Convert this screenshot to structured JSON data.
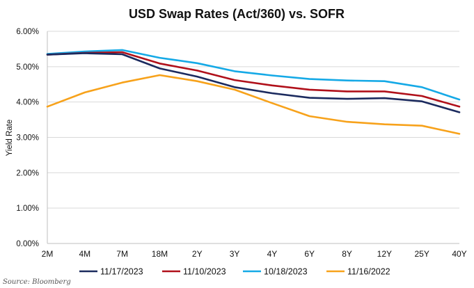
{
  "chart_data": {
    "type": "line",
    "title": "USD Swap Rates (Act/360) vs. SOFR",
    "ylabel": "Yield Rate",
    "xlabel": "",
    "ylim": [
      0,
      6
    ],
    "yticks": [
      "0.00%",
      "1.00%",
      "2.00%",
      "3.00%",
      "4.00%",
      "5.00%",
      "6.00%"
    ],
    "categories": [
      "2M",
      "4M",
      "7M",
      "18M",
      "2Y",
      "3Y",
      "4Y",
      "6Y",
      "8Y",
      "12Y",
      "25Y",
      "40Y"
    ],
    "grid": "horizontal",
    "legend_position": "bottom",
    "series": [
      {
        "name": "11/17/2023",
        "color": "#1b2a5e",
        "values": [
          5.34,
          5.38,
          5.35,
          4.95,
          4.72,
          4.42,
          4.25,
          4.12,
          4.09,
          4.11,
          4.02,
          3.71
        ]
      },
      {
        "name": "11/10/2023",
        "color": "#b0101a",
        "values": [
          5.34,
          5.39,
          5.41,
          5.09,
          4.89,
          4.62,
          4.47,
          4.35,
          4.3,
          4.3,
          4.17,
          3.87
        ]
      },
      {
        "name": "10/18/2023",
        "color": "#15a9e6",
        "values": [
          5.36,
          5.43,
          5.47,
          5.25,
          5.1,
          4.87,
          4.75,
          4.65,
          4.61,
          4.59,
          4.42,
          4.07
        ]
      },
      {
        "name": "11/16/2022",
        "color": "#f7a21b",
        "values": [
          3.87,
          4.27,
          4.55,
          4.76,
          4.59,
          4.35,
          3.97,
          3.6,
          3.44,
          3.37,
          3.33,
          3.1
        ]
      }
    ]
  },
  "source_note": "Source: Bloomberg"
}
